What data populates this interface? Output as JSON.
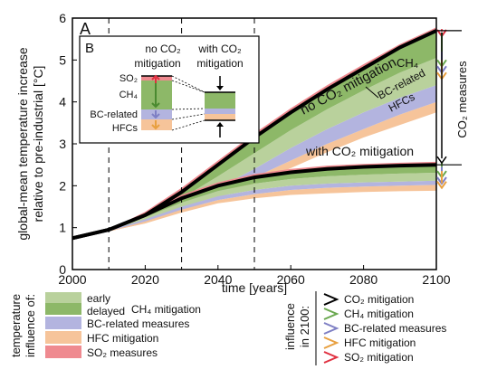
{
  "chart_data": {
    "type": "area",
    "panel_label": "A",
    "xlabel": "time [years]",
    "ylabel_line1": "global-mean temperature increase",
    "ylabel_line2": "relative to pre-industrial [°C]",
    "xlim": [
      2000,
      2100
    ],
    "ylim": [
      0,
      6
    ],
    "xticks": [
      2000,
      2020,
      2040,
      2060,
      2080,
      2100
    ],
    "yticks": [
      0,
      1,
      2,
      3,
      4,
      5,
      6
    ],
    "dashed_years": [
      2010,
      2030,
      2050
    ],
    "x": [
      2000,
      2010,
      2020,
      2030,
      2040,
      2050,
      2060,
      2070,
      2080,
      2090,
      2100
    ],
    "no_mitigation_baseline": [
      0.75,
      0.95,
      1.3,
      1.85,
      2.5,
      3.15,
      3.75,
      4.3,
      4.8,
      5.3,
      5.7
    ],
    "with_co2_mitigation": [
      0.75,
      0.95,
      1.3,
      1.7,
      2.0,
      2.2,
      2.32,
      2.4,
      2.45,
      2.48,
      2.5
    ],
    "bands_no_co2": [
      {
        "name": "SO2",
        "upper": [
          0.75,
          0.95,
          1.38,
          1.95,
          2.6,
          3.25,
          3.85,
          4.4,
          4.9,
          5.38,
          5.78
        ]
      },
      {
        "name": "CH4",
        "lower": [
          0.75,
          0.93,
          1.2,
          1.55,
          1.95,
          2.4,
          2.9,
          3.35,
          3.75,
          4.1,
          4.4
        ]
      },
      {
        "name": "BC-related",
        "lower": [
          0.75,
          0.92,
          1.15,
          1.45,
          1.8,
          2.2,
          2.6,
          3.0,
          3.35,
          3.7,
          4.0
        ]
      },
      {
        "name": "HFCs",
        "lower": [
          0.75,
          0.91,
          1.1,
          1.38,
          1.7,
          2.05,
          2.42,
          2.8,
          3.15,
          3.45,
          3.75
        ]
      }
    ],
    "bands_with_co2": [
      {
        "name": "SO2",
        "upper": [
          0.75,
          0.95,
          1.35,
          1.78,
          2.08,
          2.28,
          2.4,
          2.48,
          2.52,
          2.55,
          2.57
        ]
      },
      {
        "name": "CH4",
        "lower": [
          0.75,
          0.93,
          1.2,
          1.5,
          1.75,
          1.9,
          2.0,
          2.05,
          2.08,
          2.1,
          2.12
        ]
      },
      {
        "name": "BC-related",
        "lower": [
          0.75,
          0.92,
          1.15,
          1.43,
          1.66,
          1.8,
          1.9,
          1.95,
          1.98,
          2.0,
          2.02
        ]
      },
      {
        "name": "HFCs",
        "lower": [
          0.75,
          0.91,
          1.1,
          1.36,
          1.58,
          1.7,
          1.78,
          1.82,
          1.85,
          1.87,
          1.88
        ]
      }
    ],
    "colors": {
      "early_ch4": "#b9d19c",
      "delayed_ch4": "#8db868",
      "bc": "#b3b4df",
      "hfc": "#f6c49a",
      "so2": "#ef8a90",
      "line": "#000000",
      "arrow_co2": "#000000",
      "arrow_ch4": "#6aa84f",
      "arrow_bc": "#7e7fc4",
      "arrow_hfc": "#e8a040",
      "arrow_so2": "#e03040"
    },
    "annotations": {
      "no_co2": "no CO₂ mitigation",
      "with_co2": "with CO₂ mitigation",
      "ch4": "CH₄",
      "bc_hfc_line1": "BC-related",
      "bc_hfc_line2": "HFCs",
      "co2_measures": "CO₂ measures"
    },
    "inset": {
      "label": "B",
      "col1_line1": "no CO₂",
      "col1_line2": "mitigation",
      "col2_line1": "with CO₂",
      "col2_line2": "mitigation",
      "so2": "SO₂",
      "ch4": "CH₄",
      "bc": "BC-related",
      "hfcs": "HFCs"
    },
    "legend_left": {
      "title_line1": "temperature",
      "title_line2": "influence of:",
      "early": "early",
      "delayed": "delayed",
      "ch4": "CH₄ mitigation",
      "bc": "BC-related measures",
      "hfc": "HFC mitigation",
      "so2": "SO₂ measures"
    },
    "legend_right": {
      "title_line1": "influence",
      "title_line2": "in 2100:",
      "items": [
        "CO₂ mitigation",
        "CH₄ mitigation",
        "BC-related measures",
        "HFC mitigation",
        "SO₂ mitigation"
      ]
    }
  }
}
